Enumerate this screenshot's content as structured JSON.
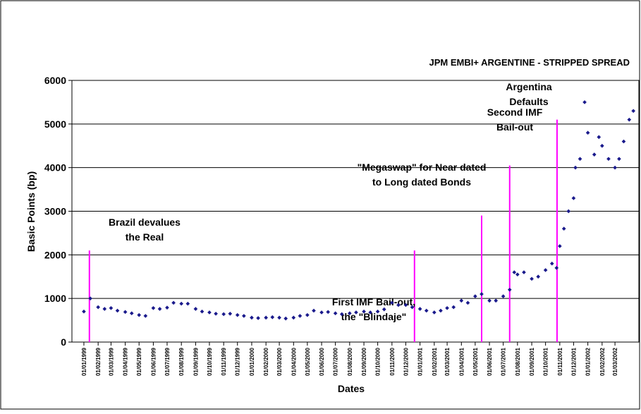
{
  "chart_data": {
    "type": "scatter",
    "title": "JPM EMBI+ ARGENTINE - STRIPPED SPREAD",
    "x_label": "Dates",
    "y_label": "Basic Points (bp)",
    "ylim": [
      0,
      6000
    ],
    "yticks": [
      0,
      1000,
      2000,
      3000,
      4000,
      5000,
      6000
    ],
    "xlim": [
      "06/12/1998",
      "22/04/2002"
    ],
    "xticks": [
      "01/01/1999",
      "01/02/1999",
      "01/03/1999",
      "01/04/1999",
      "01/05/1999",
      "01/06/1999",
      "01/07/1999",
      "01/08/1999",
      "01/09/1999",
      "01/10/1999",
      "01/11/1999",
      "01/12/1999",
      "01/01/2000",
      "01/02/2000",
      "01/03/2000",
      "01/04/2000",
      "01/05/2000",
      "01/06/2000",
      "01/07/2000",
      "01/08/2000",
      "01/09/2000",
      "01/10/2000",
      "01/11/2000",
      "01/12/2000",
      "01/01/2001",
      "01/02/2001",
      "01/03/2001",
      "01/04/2001",
      "01/05/2001",
      "01/06/2001",
      "01/07/2001",
      "01/08/2001",
      "01/09/2001",
      "01/10/2001",
      "01/11/2001",
      "01/12/2001",
      "01/01/2002",
      "01/02/2002",
      "01/03/2002"
    ],
    "grid": true,
    "color": "#1a1a8c",
    "series": [
      {
        "name": "Stripped spread",
        "color": "#1a1a8c",
        "x": [
          "01/01/1999",
          "15/01/1999",
          "01/02/1999",
          "15/02/1999",
          "01/03/1999",
          "15/03/1999",
          "01/04/1999",
          "15/04/1999",
          "01/05/1999",
          "15/05/1999",
          "01/06/1999",
          "15/06/1999",
          "01/07/1999",
          "15/07/1999",
          "01/08/1999",
          "15/08/1999",
          "01/09/1999",
          "15/09/1999",
          "01/10/1999",
          "15/10/1999",
          "01/11/1999",
          "15/11/1999",
          "01/12/1999",
          "15/12/1999",
          "01/01/2000",
          "15/01/2000",
          "01/02/2000",
          "15/02/2000",
          "01/03/2000",
          "15/03/2000",
          "01/04/2000",
          "15/04/2000",
          "01/05/2000",
          "15/05/2000",
          "01/06/2000",
          "15/06/2000",
          "01/07/2000",
          "15/07/2000",
          "01/08/2000",
          "15/08/2000",
          "01/09/2000",
          "15/09/2000",
          "01/10/2000",
          "15/10/2000",
          "01/11/2000",
          "15/11/2000",
          "01/12/2000",
          "15/12/2000",
          "01/01/2001",
          "15/01/2001",
          "01/02/2001",
          "15/02/2001",
          "01/03/2001",
          "15/03/2001",
          "01/04/2001",
          "15/04/2001",
          "01/05/2001",
          "15/05/2001",
          "01/06/2001",
          "15/06/2001",
          "01/07/2001",
          "15/07/2001",
          "25/07/2001",
          "01/08/2001",
          "15/08/2001",
          "01/09/2001",
          "15/09/2001",
          "01/10/2001",
          "15/10/2001",
          "25/10/2001",
          "01/11/2001",
          "10/11/2001",
          "20/11/2001",
          "01/12/2001",
          "05/12/2001",
          "15/12/2001",
          "25/12/2001",
          "01/01/2002",
          "15/01/2002",
          "25/01/2002",
          "01/02/2002",
          "15/02/2002",
          "01/03/2002",
          "10/03/2002",
          "20/03/2002",
          "01/04/2002",
          "10/04/2002"
        ],
        "values": [
          700,
          1000,
          800,
          760,
          780,
          720,
          690,
          660,
          620,
          600,
          780,
          760,
          790,
          900,
          880,
          880,
          760,
          700,
          680,
          650,
          640,
          650,
          620,
          600,
          560,
          550,
          560,
          570,
          560,
          540,
          560,
          600,
          620,
          720,
          680,
          690,
          660,
          640,
          660,
          680,
          700,
          680,
          700,
          750,
          900,
          850,
          850,
          800,
          760,
          720,
          680,
          720,
          780,
          800,
          950,
          900,
          1050,
          1100,
          950,
          950,
          1050,
          1200,
          1600,
          1550,
          1600,
          1450,
          1500,
          1650,
          1800,
          1700,
          2200,
          2600,
          3000,
          3300,
          4000,
          4200,
          5500,
          4800,
          4300,
          4700,
          4500,
          4200,
          4000,
          4200,
          4600,
          5100,
          5300
        ]
      }
    ],
    "annotations": [
      {
        "lines": [
          "Brazil devalues",
          "the Real"
        ],
        "x": "13/01/1999",
        "y": 2100
      },
      {
        "lines": [
          "First IMF Bail-out,",
          "the \"Blindaje\""
        ],
        "x": "20/12/2000",
        "y": 2100
      },
      {
        "lines": [
          "\"Megaswap\" for Near dated",
          "to Long dated Bonds"
        ],
        "x": "15/05/2001",
        "y": 2900
      },
      {
        "lines": [
          "Second IMF",
          "Bail-out"
        ],
        "x": "15/07/2001",
        "y": 4050
      },
      {
        "lines": [
          "Argentina",
          "Defaults"
        ],
        "x": "26/10/2001",
        "y": 5100
      }
    ]
  }
}
